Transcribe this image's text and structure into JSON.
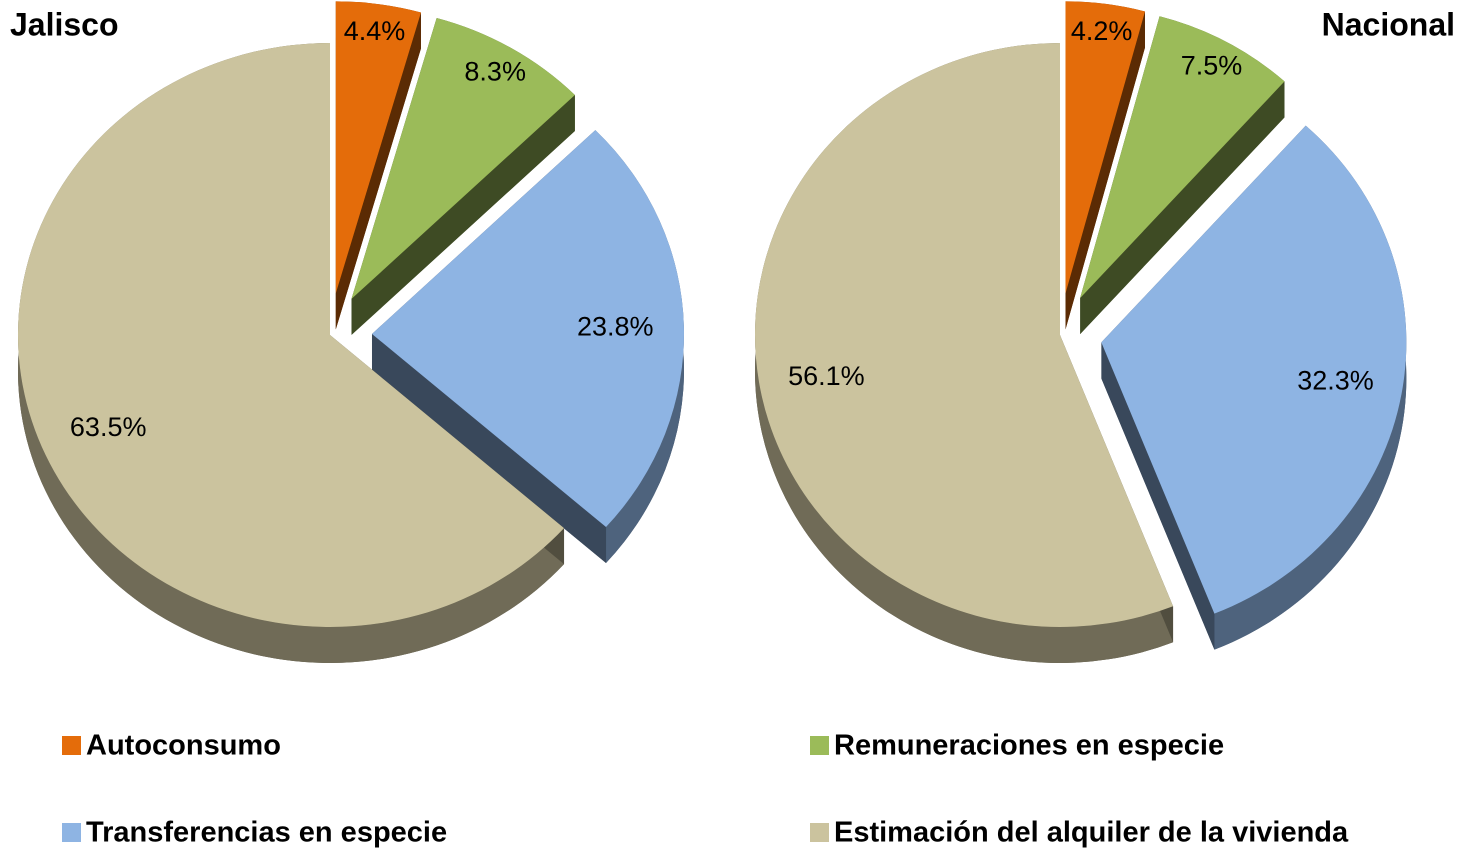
{
  "chart_data": [
    {
      "type": "pie",
      "title": "Jalisco",
      "categories": [
        "Autoconsumo",
        "Remuneraciones en especie",
        "Transferencias en especie",
        "Estimación del alquiler de la vivienda"
      ],
      "values": [
        4.4,
        8.3,
        23.8,
        63.5
      ],
      "value_labels": [
        "4.4%",
        "8.3%",
        "23.8%",
        "63.5%"
      ],
      "colors": [
        "#e46c0a",
        "#9bbb59",
        "#8eb4e3",
        "#cbc39e"
      ]
    },
    {
      "type": "pie",
      "title": "Nacional",
      "categories": [
        "Autoconsumo",
        "Remuneraciones en especie",
        "Transferencias en especie",
        "Estimación del alquiler de la vivienda"
      ],
      "values": [
        4.2,
        7.5,
        32.3,
        56.1
      ],
      "value_labels": [
        "4.2%",
        "7.5%",
        "32.3%",
        "56.1%"
      ],
      "colors": [
        "#e46c0a",
        "#9bbb59",
        "#8eb4e3",
        "#cbc39e"
      ]
    }
  ]
}
